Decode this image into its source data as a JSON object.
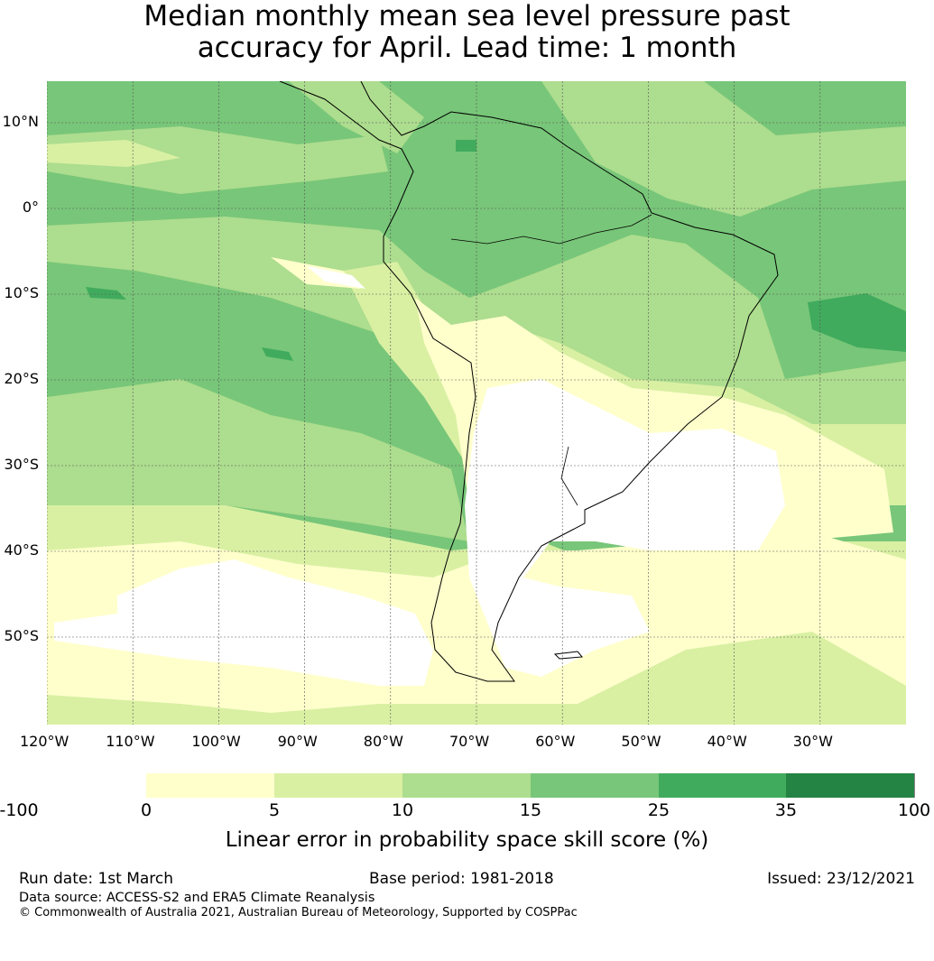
{
  "title": {
    "line1": "Median monthly mean sea level pressure past",
    "line2": "accuracy for April. Lead time: 1 month"
  },
  "map": {
    "lat_labels": [
      "10°N",
      "0°",
      "10°S",
      "20°S",
      "30°S",
      "40°S",
      "50°S"
    ],
    "lon_labels": [
      "120°W",
      "110°W",
      "100°W",
      "90°W",
      "80°W",
      "70°W",
      "60°W",
      "50°W",
      "40°W",
      "30°W"
    ]
  },
  "colorbar": {
    "label": "Linear error in probability space skill score (%)",
    "ticks": [
      "-100",
      "0",
      "5",
      "10",
      "15",
      "25",
      "35",
      "100"
    ],
    "colors": [
      "#ffffff",
      "#ffffcc",
      "#d9f0a3",
      "#addd8e",
      "#78c679",
      "#41ab5d",
      "#238443"
    ]
  },
  "footer": {
    "run_date": "Run date: 1st March",
    "base_period": "Base period: 1981-2018",
    "issued": "Issued: 23/12/2021",
    "source": "Data source: ACCESS-S2 and ERA5 Climate Reanalysis",
    "copyright": "© Commonwealth of Australia 2021, Australian Bureau of Meteorology, Supported by COSPPac"
  }
}
